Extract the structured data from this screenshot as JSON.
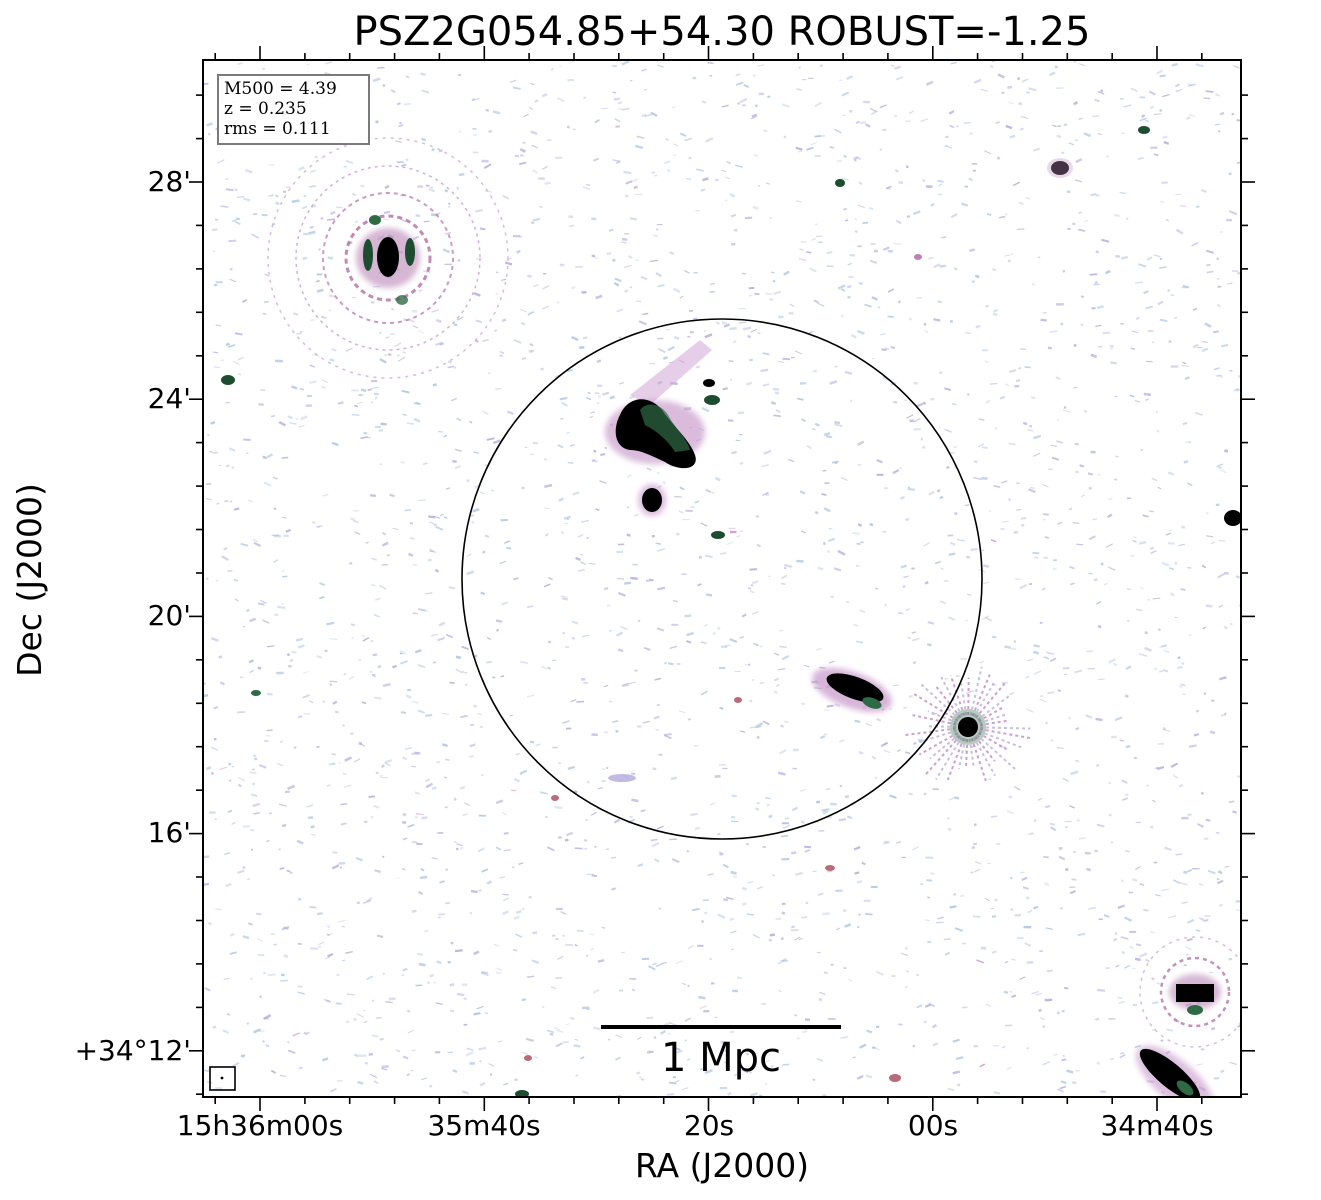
{
  "title": "PSZ2G054.85+54.30 ROBUST=-1.25",
  "axes": {
    "xlabel": "RA (J2000)",
    "ylabel": "Dec (J2000)",
    "x_ticks": [
      "15h36m00s",
      "35m40s",
      "20s",
      "00s",
      "34m40s"
    ],
    "y_ticks": [
      "28'",
      "24'",
      "20'",
      "16'",
      "+34°12'"
    ]
  },
  "info": {
    "mass": "M500 = 4.39",
    "redshift": "z = 0.235",
    "rms": "rms = 0.111"
  },
  "scalebar": {
    "label": "1 Mpc"
  },
  "colors": {
    "noise_blue": "#a9c3e0",
    "noise_purple": "#b4a9dc",
    "pink": "#c890c0",
    "green": "#2e6b45",
    "black": "#000000"
  }
}
